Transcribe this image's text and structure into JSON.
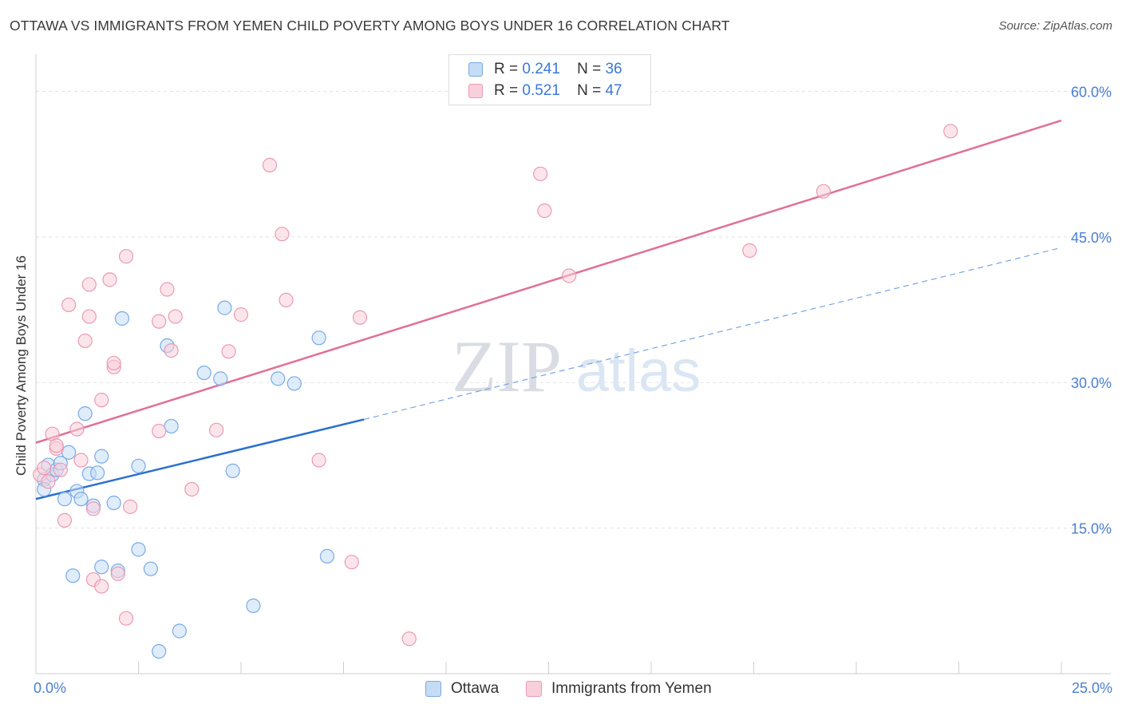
{
  "chart_data": {
    "type": "scatter",
    "title": "OTTAWA VS IMMIGRANTS FROM YEMEN CHILD POVERTY AMONG BOYS UNDER 16 CORRELATION CHART",
    "source": "Source: ZipAtlas.com",
    "xlabel": "",
    "ylabel": "Child Poverty Among Boys Under 16",
    "xlim": [
      0,
      25
    ],
    "ylim": [
      0,
      63
    ],
    "x_tick_labels": [
      "0.0%",
      "25.0%"
    ],
    "y_ticks": [
      15,
      30,
      45,
      60
    ],
    "y_tick_labels": [
      "15.0%",
      "30.0%",
      "45.0%",
      "60.0%"
    ],
    "watermark": {
      "zip": "ZIP",
      "atlas": "atlas"
    },
    "legend": [
      {
        "r_label": "R =",
        "r_value": "0.241",
        "n_label": "N =",
        "n_value": "36"
      },
      {
        "r_label": "R =",
        "r_value": "0.521",
        "n_label": "N =",
        "n_value": "47"
      }
    ],
    "series": [
      {
        "name": "Ottawa",
        "color": "#7aaae6",
        "fill": "#c5dcf5",
        "line_color": "#2a6fcf",
        "trend": {
          "x0": 0,
          "y0": 18.0,
          "x1": 8,
          "y1": 26.2,
          "dash_to_x": 25,
          "dash_to_y": 43.9
        },
        "points": [
          [
            0.2,
            20.0
          ],
          [
            0.3,
            21.5
          ],
          [
            0.2,
            19.0
          ],
          [
            0.4,
            20.5
          ],
          [
            0.5,
            21.0
          ],
          [
            0.6,
            21.7
          ],
          [
            0.7,
            18.0
          ],
          [
            0.8,
            22.8
          ],
          [
            1.0,
            18.8
          ],
          [
            1.1,
            18.0
          ],
          [
            1.2,
            26.8
          ],
          [
            1.3,
            20.6
          ],
          [
            1.5,
            20.7
          ],
          [
            1.4,
            17.3
          ],
          [
            1.6,
            22.4
          ],
          [
            1.9,
            17.6
          ],
          [
            2.1,
            36.6
          ],
          [
            2.5,
            21.4
          ],
          [
            2.5,
            12.8
          ],
          [
            2.8,
            10.8
          ],
          [
            3.2,
            33.8
          ],
          [
            3.3,
            25.5
          ],
          [
            3.5,
            4.4
          ],
          [
            4.1,
            31.0
          ],
          [
            4.5,
            30.4
          ],
          [
            4.6,
            37.7
          ],
          [
            4.8,
            20.9
          ],
          [
            5.3,
            7.0
          ],
          [
            5.9,
            30.4
          ],
          [
            6.3,
            29.9
          ],
          [
            6.9,
            34.6
          ],
          [
            7.1,
            12.1
          ],
          [
            3.0,
            2.3
          ],
          [
            1.6,
            11.0
          ],
          [
            2.0,
            10.6
          ],
          [
            0.9,
            10.1
          ]
        ]
      },
      {
        "name": "Immigrants from Yemen",
        "color": "#eb9ab2",
        "fill": "#f8cfdb",
        "line_color": "#e07097",
        "trend": {
          "x0": 0,
          "y0": 23.8,
          "x1": 25,
          "y1": 57.0
        },
        "points": [
          [
            0.1,
            20.5
          ],
          [
            0.2,
            21.2
          ],
          [
            0.3,
            19.8
          ],
          [
            0.4,
            24.7
          ],
          [
            0.5,
            23.2
          ],
          [
            0.6,
            21.0
          ],
          [
            0.7,
            15.8
          ],
          [
            0.8,
            38.0
          ],
          [
            1.0,
            25.2
          ],
          [
            1.1,
            22.0
          ],
          [
            1.2,
            34.3
          ],
          [
            1.3,
            40.1
          ],
          [
            1.3,
            36.8
          ],
          [
            1.6,
            28.2
          ],
          [
            1.8,
            40.6
          ],
          [
            1.9,
            31.6
          ],
          [
            1.9,
            32.0
          ],
          [
            2.2,
            43.0
          ],
          [
            2.3,
            17.2
          ],
          [
            3.0,
            25.0
          ],
          [
            3.0,
            36.3
          ],
          [
            3.2,
            39.6
          ],
          [
            3.3,
            33.3
          ],
          [
            3.4,
            36.8
          ],
          [
            3.8,
            19.0
          ],
          [
            4.4,
            25.1
          ],
          [
            4.7,
            33.2
          ],
          [
            5.0,
            37.0
          ],
          [
            5.7,
            52.4
          ],
          [
            6.0,
            45.3
          ],
          [
            6.1,
            38.5
          ],
          [
            6.9,
            22.0
          ],
          [
            7.7,
            11.5
          ],
          [
            7.9,
            36.7
          ],
          [
            9.1,
            3.6
          ],
          [
            12.3,
            51.5
          ],
          [
            12.4,
            47.7
          ],
          [
            13.0,
            41.0
          ],
          [
            17.4,
            43.6
          ],
          [
            19.2,
            49.7
          ],
          [
            22.3,
            55.9
          ],
          [
            1.4,
            9.7
          ],
          [
            1.6,
            9.0
          ],
          [
            2.0,
            10.3
          ],
          [
            2.2,
            5.7
          ],
          [
            0.5,
            23.5
          ],
          [
            1.4,
            17.0
          ]
        ]
      }
    ]
  }
}
